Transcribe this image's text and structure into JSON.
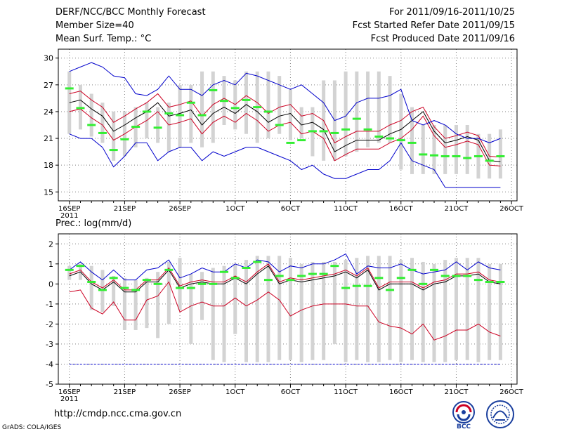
{
  "header": {
    "title": "DERF/NCC/BCC Monthly Forecast",
    "member_size": "Member Size=40",
    "variable": "Mean Surf. Temp.: °C",
    "period": "For 2011/09/16-2011/10/25",
    "refer_date": "Fcst Started Refer Date 2011/09/15",
    "produced_date": "Fcst Produced Date 2011/09/16"
  },
  "footer": {
    "url": "http://cmdp.ncc.cma.gov.cn",
    "credit": "GrADS: COLA/IGES",
    "logo_bcc_text": "BCC"
  },
  "colors": {
    "box": "#d3d3d3",
    "green": "#33ee33",
    "blue": "#0000cc",
    "red": "#cc0022",
    "black": "#000000",
    "grid": "#808080"
  },
  "chart_data": [
    {
      "type": "line",
      "title": "Mean Surf. Temp.: °C",
      "days": 40,
      "x_ticks": [
        {
          "day": 1,
          "label": "16SEP"
        },
        {
          "day": 6,
          "label": "21SEP"
        },
        {
          "day": 11,
          "label": "26SEP"
        },
        {
          "day": 16,
          "label": "1OCT"
        },
        {
          "day": 21,
          "label": "6OCT"
        },
        {
          "day": 26,
          "label": "11OCT"
        },
        {
          "day": 31,
          "label": "16OCT"
        },
        {
          "day": 36,
          "label": "21OCT"
        },
        {
          "day": 41,
          "label": "26OCT"
        }
      ],
      "x_sublabel": "2011",
      "ylim": [
        14,
        31
      ],
      "y_ticks": [
        15,
        18,
        21,
        24,
        27,
        30
      ],
      "boxes": {
        "low": [
          21.5,
          22.0,
          21.2,
          20.5,
          18.5,
          19.0,
          20.0,
          21.0,
          20.5,
          19.5,
          20.0,
          20.5,
          20.0,
          20.5,
          22.5,
          22.0,
          21.5,
          20.5,
          21.0,
          21.5,
          20.8,
          21.0,
          19.0,
          18.5,
          18.5,
          19.0,
          19.5,
          20.0,
          20.5,
          20.5,
          17.5,
          17.0,
          17.0,
          17.0,
          17.0,
          17.0,
          17.0,
          16.5,
          16.5,
          16.5
        ],
        "high": [
          28.5,
          27.0,
          26.0,
          25.0,
          24.0,
          24.0,
          24.5,
          25.0,
          24.5,
          25.0,
          27.0,
          27.0,
          28.5,
          28.5,
          28.0,
          27.5,
          28.5,
          28.5,
          28.5,
          28.0,
          26.5,
          24.5,
          24.5,
          27.5,
          27.5,
          28.5,
          28.5,
          28.5,
          28.5,
          28.0,
          26.0,
          24.5,
          22.5,
          22.5,
          22.5,
          22.5,
          22.5,
          21.5,
          21.5,
          22.0
        ]
      },
      "series": [
        {
          "name": "ensemble-mean",
          "color": "black",
          "values": [
            25.0,
            25.3,
            24.3,
            23.5,
            21.8,
            22.5,
            23.3,
            24.0,
            25.0,
            23.5,
            23.8,
            24.2,
            22.5,
            23.8,
            24.5,
            23.8,
            24.8,
            24.0,
            22.8,
            23.5,
            23.8,
            22.5,
            22.8,
            22.0,
            19.5,
            20.2,
            20.8,
            20.8,
            20.8,
            21.5,
            22.0,
            23.0,
            24.0,
            21.8,
            20.5,
            20.8,
            21.2,
            20.8,
            18.5,
            18.4
          ]
        },
        {
          "name": "mean-plus-sd",
          "color": "red",
          "values": [
            26.0,
            26.3,
            25.3,
            24.5,
            22.8,
            23.5,
            24.3,
            25.0,
            26.0,
            24.5,
            24.8,
            25.2,
            23.5,
            24.8,
            25.5,
            24.8,
            25.8,
            25.0,
            23.8,
            24.5,
            24.8,
            23.5,
            23.8,
            23.0,
            20.5,
            21.2,
            21.8,
            21.8,
            21.8,
            22.5,
            23.0,
            24.0,
            24.5,
            22.3,
            21.0,
            21.3,
            21.7,
            21.3,
            19.0,
            18.9
          ]
        },
        {
          "name": "mean-minus-sd",
          "color": "red",
          "values": [
            24.0,
            24.3,
            23.3,
            22.5,
            20.8,
            21.5,
            22.3,
            23.0,
            24.0,
            22.5,
            22.8,
            23.2,
            21.5,
            22.8,
            23.5,
            22.8,
            23.8,
            23.0,
            21.8,
            22.5,
            22.8,
            21.5,
            21.8,
            21.0,
            18.5,
            19.2,
            19.8,
            19.8,
            19.8,
            20.5,
            21.0,
            22.0,
            23.5,
            21.3,
            20.0,
            20.3,
            20.7,
            20.3,
            18.0,
            17.9
          ]
        },
        {
          "name": "max",
          "color": "blue",
          "values": [
            28.5,
            29.0,
            29.5,
            29.0,
            28.0,
            27.8,
            26.0,
            25.8,
            26.5,
            28.0,
            26.5,
            26.5,
            25.8,
            27.0,
            27.5,
            27.0,
            28.3,
            28.0,
            27.5,
            27.0,
            26.5,
            27.0,
            26.0,
            25.0,
            23.0,
            23.5,
            25.0,
            25.5,
            25.5,
            25.8,
            26.5,
            23.0,
            22.5,
            23.0,
            22.5,
            21.5,
            21.0,
            21.0,
            20.5,
            21.0
          ]
        },
        {
          "name": "min",
          "color": "blue",
          "values": [
            21.5,
            21.0,
            21.0,
            20.0,
            17.8,
            19.0,
            20.5,
            20.5,
            18.5,
            19.5,
            20.0,
            20.0,
            18.5,
            19.5,
            19.0,
            19.5,
            20.0,
            20.0,
            19.5,
            19.0,
            18.5,
            17.5,
            18.0,
            17.0,
            16.5,
            16.5,
            17.0,
            17.5,
            17.5,
            18.5,
            20.5,
            18.5,
            18.0,
            17.5,
            15.5,
            15.5,
            15.5,
            15.5,
            15.5,
            15.5
          ]
        },
        {
          "name": "ensemble-median",
          "color": "green",
          "values": [
            26.6,
            24.4,
            22.5,
            21.6,
            19.7,
            20.9,
            22.3,
            24.0,
            22.2,
            23.8,
            23.6,
            25.0,
            23.6,
            26.4,
            25.2,
            24.4,
            25.3,
            24.5,
            24.0,
            22.5,
            20.5,
            20.8,
            21.8,
            21.8,
            21.6,
            22.0,
            23.2,
            22.0,
            21.2,
            21.0,
            20.8,
            20.5,
            19.2,
            19.1,
            19.0,
            19.0,
            18.8,
            19.0,
            18.5,
            19.0
          ]
        }
      ]
    },
    {
      "type": "line",
      "title": "Prec.: log(mm/d)",
      "days": 40,
      "x_ticks": [
        {
          "day": 1,
          "label": "16SEP"
        },
        {
          "day": 6,
          "label": "21SEP"
        },
        {
          "day": 11,
          "label": "26SEP"
        },
        {
          "day": 16,
          "label": "1OCT"
        },
        {
          "day": 21,
          "label": "6OCT"
        },
        {
          "day": 26,
          "label": "11OCT"
        },
        {
          "day": 31,
          "label": "16OCT"
        },
        {
          "day": 36,
          "label": "21OCT"
        },
        {
          "day": 41,
          "label": "26OCT"
        }
      ],
      "x_sublabel": "2011",
      "ylim": [
        -5,
        2.5
      ],
      "y_ticks": [
        -5,
        -4,
        -3,
        -2,
        -1,
        0,
        1,
        2
      ],
      "floor_line": {
        "value": -4,
        "color": "blue",
        "dashed": true
      },
      "boxes": {
        "low": [
          0.2,
          0.2,
          -1.3,
          -1.4,
          -1.1,
          -2.3,
          -2.3,
          -2.2,
          -2.7,
          -2.0,
          -1.3,
          -3.0,
          -1.8,
          -3.8,
          -3.9,
          -2.5,
          -3.9,
          -3.9,
          -3.9,
          -3.8,
          -3.8,
          -3.9,
          -3.8,
          -3.8,
          -3.0,
          -3.9,
          -3.8,
          -3.9,
          -3.9,
          -3.8,
          -3.9,
          -3.8,
          -3.9,
          -3.9,
          -3.9,
          -3.8,
          -3.8,
          -3.9,
          -3.8,
          -3.8
        ],
        "high": [
          0.9,
          1.0,
          0.9,
          0.7,
          0.4,
          0.3,
          0.2,
          0.3,
          0.6,
          1.1,
          1.3,
          0.5,
          0.6,
          0.8,
          0.9,
          1.0,
          1.2,
          1.4,
          1.4,
          1.4,
          1.3,
          1.0,
          1.1,
          1.1,
          1.1,
          1.2,
          1.3,
          1.4,
          1.4,
          1.4,
          1.2,
          1.3,
          1.1,
          1.0,
          1.2,
          1.3,
          1.3,
          1.3,
          1.0,
          1.0
        ]
      },
      "series": [
        {
          "name": "ensemble-mean",
          "color": "black",
          "values": [
            0.4,
            0.6,
            0.0,
            -0.3,
            0.1,
            -0.4,
            -0.4,
            0.1,
            0.1,
            0.7,
            -0.2,
            0.0,
            0.1,
            0.0,
            0.0,
            0.3,
            0.0,
            0.5,
            0.9,
            0.0,
            0.2,
            0.1,
            0.2,
            0.3,
            0.4,
            0.6,
            0.3,
            0.7,
            -0.3,
            0.0,
            0.0,
            0.0,
            -0.3,
            0.0,
            0.1,
            0.4,
            0.4,
            0.5,
            0.1,
            0.0
          ]
        },
        {
          "name": "mean-plus-sd",
          "color": "red",
          "values": [
            0.5,
            0.7,
            0.1,
            -0.2,
            0.2,
            -0.3,
            -0.3,
            0.2,
            0.2,
            0.8,
            -0.1,
            0.1,
            0.2,
            0.1,
            0.1,
            0.4,
            0.1,
            0.6,
            1.0,
            0.1,
            0.3,
            0.2,
            0.3,
            0.4,
            0.5,
            0.7,
            0.4,
            0.8,
            -0.2,
            0.1,
            0.1,
            0.1,
            -0.2,
            0.1,
            0.2,
            0.5,
            0.5,
            0.6,
            0.2,
            0.1
          ]
        },
        {
          "name": "mean-minus-sd",
          "color": "red",
          "values": [
            -0.4,
            -0.3,
            -1.2,
            -1.5,
            -0.9,
            -1.8,
            -1.8,
            -0.8,
            -0.6,
            0.1,
            -1.4,
            -1.1,
            -0.9,
            -1.1,
            -1.1,
            -0.7,
            -1.1,
            -0.8,
            -0.4,
            -0.8,
            -1.6,
            -1.3,
            -1.1,
            -1.0,
            -1.0,
            -1.0,
            -1.1,
            -1.1,
            -1.9,
            -2.1,
            -2.2,
            -2.5,
            -2.0,
            -2.8,
            -2.6,
            -2.3,
            -2.3,
            -2.0,
            -2.4,
            -2.6
          ]
        },
        {
          "name": "max",
          "color": "blue",
          "values": [
            0.7,
            1.1,
            0.6,
            0.2,
            0.7,
            0.2,
            0.2,
            0.7,
            0.8,
            1.2,
            0.3,
            0.5,
            0.8,
            0.6,
            0.6,
            1.0,
            0.8,
            1.2,
            1.1,
            0.6,
            0.9,
            0.8,
            1.0,
            1.0,
            1.2,
            1.5,
            0.5,
            0.9,
            0.8,
            0.8,
            1.0,
            0.7,
            0.5,
            0.6,
            0.7,
            1.1,
            0.7,
            1.1,
            0.8,
            0.7
          ]
        },
        {
          "name": "ensemble-median",
          "color": "green",
          "values": [
            0.7,
            0.9,
            0.1,
            -0.3,
            0.3,
            -0.2,
            -0.3,
            0.2,
            0.0,
            0.7,
            -0.2,
            -0.2,
            0.0,
            0.0,
            0.6,
            0.3,
            0.8,
            1.1,
            0.2,
            0.4,
            0.2,
            0.4,
            0.5,
            0.5,
            0.9,
            -0.2,
            -0.1,
            -0.1,
            0.3,
            -0.3,
            0.3,
            0.7,
            0.0,
            0.7,
            0.4,
            0.4,
            0.4,
            0.2,
            0.1,
            0.1
          ]
        }
      ]
    }
  ]
}
